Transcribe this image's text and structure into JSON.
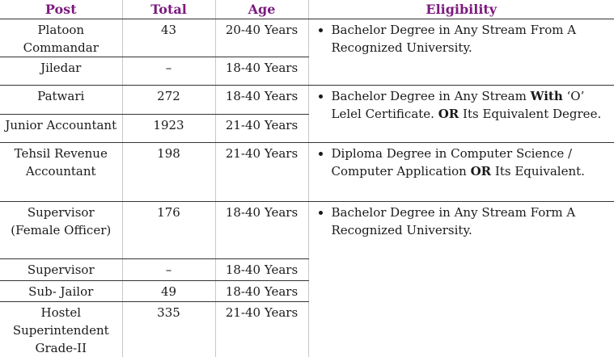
{
  "headers": {
    "post": "Post",
    "total": "Total",
    "age": "Age",
    "eligibility": "Eligibility"
  },
  "rows": [
    {
      "post": "Platoon Commandar",
      "total": "43",
      "age": "20-40 Years"
    },
    {
      "post": "Jiledar",
      "total": "–",
      "age": "18-40 Years"
    },
    {
      "post": "Patwari",
      "total": "272",
      "age": "18-40 Years"
    },
    {
      "post": "Junior Accountant",
      "total": "1923",
      "age": "21-40 Years"
    },
    {
      "post": "Tehsil Revenue Accountant",
      "total": "198",
      "age": "21-40 Years"
    },
    {
      "post": "Supervisor (Female Officer)",
      "total": "176",
      "age": "18-40 Years"
    },
    {
      "post": "Supervisor",
      "total": "–",
      "age": "18-40 Years"
    },
    {
      "post": "Sub- Jailor",
      "total": "49",
      "age": "18-40 Years"
    },
    {
      "post": "Hostel Superintendent Grade-II",
      "total": "335",
      "age": "21-40 Years"
    }
  ],
  "eligibility": [
    {
      "text1": "Bachelor Degree in Any Stream From A Recognized University."
    },
    {
      "text1": "Bachelor Degree in Any Stream ",
      "bold1": "With",
      "text2": " ‘O’ Lelel Certificate. ",
      "bold2": "OR",
      "text3": " Its Equivalent Degree."
    },
    {
      "text1": "Diploma Degree in Computer Science / Computer Application ",
      "bold1": "OR",
      "text2": " Its Equivalent."
    },
    {
      "text1": "Bachelor Degree in Any Stream Form A Recognized University."
    }
  ]
}
